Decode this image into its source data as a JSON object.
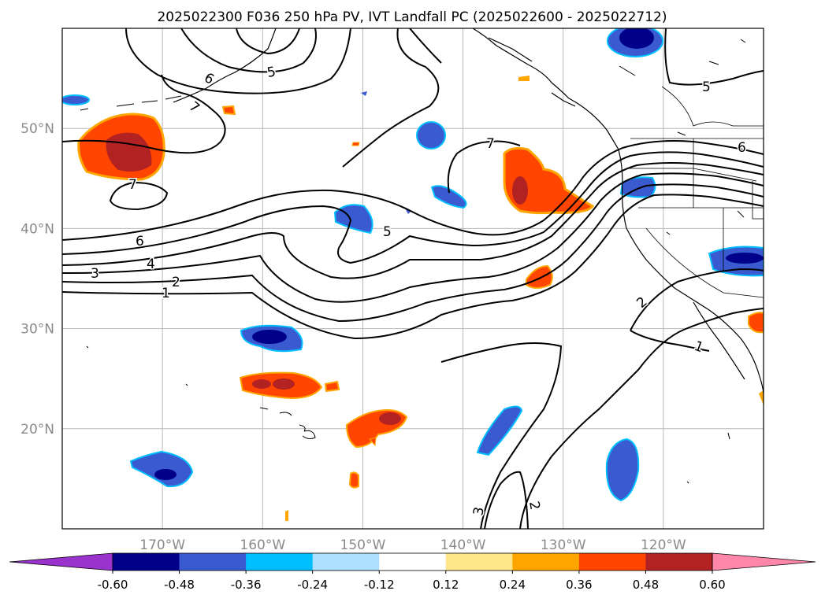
{
  "title": "2025022300 F036 250 hPa PV, IVT Landfall PC (2025022600 - 2025022712)",
  "map": {
    "lon_ticks": [
      {
        "lon": -170,
        "label": "170°W"
      },
      {
        "lon": -160,
        "label": "160°W"
      },
      {
        "lon": -150,
        "label": "150°W"
      },
      {
        "lon": -140,
        "label": "140°W"
      },
      {
        "lon": -130,
        "label": "130°W"
      },
      {
        "lon": -120,
        "label": "120°W"
      }
    ],
    "lat_ticks": [
      {
        "lat": 50,
        "label": "50°N"
      },
      {
        "lat": 40,
        "label": "40°N"
      },
      {
        "lat": 30,
        "label": "30°N"
      },
      {
        "lat": 20,
        "label": "20°N"
      }
    ],
    "extent": {
      "lon_min": -180,
      "lon_max": -110,
      "lat_min": 10,
      "lat_max": 60
    },
    "grid": true,
    "tick_label_color": "#8a8a8a"
  },
  "contour_labels": [
    "1",
    "2",
    "3",
    "4",
    "5",
    "6",
    "7"
  ],
  "colorbar": {
    "ticks": [
      "-0.60",
      "-0.48",
      "-0.36",
      "-0.24",
      "-0.12",
      "0.12",
      "0.24",
      "0.36",
      "0.48",
      "0.60"
    ],
    "under_color": "#9933cc",
    "over_color": "#ff88aa",
    "colors": [
      "#00008b",
      "#3a5bd0",
      "#00bfff",
      "#ade0ff",
      "#ffffff",
      "#ffe68a",
      "#ffa500",
      "#ff4500",
      "#b22222"
    ]
  }
}
